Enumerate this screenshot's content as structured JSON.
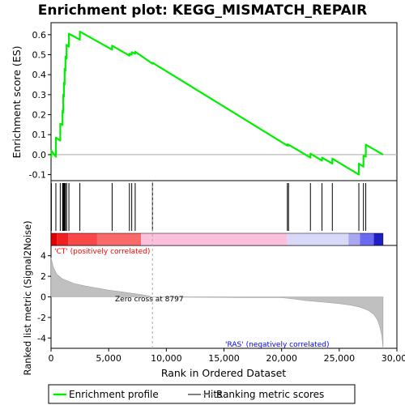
{
  "chart_data": {
    "type": "line",
    "title": "Enrichment plot: KEGG_MISMATCH_REPAIR",
    "xlabel": "Rank in Ordered Dataset",
    "ylabel_top": "Enrichment score (ES)",
    "ylabel_bottom": "Ranked list metric (Signal2Noise)",
    "xlim": [
      0,
      30000
    ],
    "x_ticks": [
      0,
      5000,
      10000,
      15000,
      20000,
      25000,
      30000
    ],
    "x_tick_labels": [
      "0",
      "5,000",
      "10,000",
      "15,000",
      "20,000",
      "25,000",
      "30,000"
    ],
    "es_ylim": [
      -0.13,
      0.66
    ],
    "es_ticks": [
      -0.1,
      0.0,
      0.1,
      0.2,
      0.3,
      0.4,
      0.5,
      0.6
    ],
    "es_tick_labels": [
      "-0.1",
      "0.0",
      "0.1",
      "0.2",
      "0.3",
      "0.4",
      "0.5",
      "0.6"
    ],
    "metric_ylim": [
      -5,
      5
    ],
    "metric_ticks": [
      -4,
      -2,
      0,
      2,
      4
    ],
    "metric_tick_labels": [
      "-4",
      "-2",
      "0",
      "2",
      "4"
    ],
    "hits": [
      30,
      420,
      800,
      1000,
      1060,
      1120,
      1180,
      1250,
      1350,
      1550,
      2500,
      5300,
      6800,
      7000,
      7300,
      8800,
      20500,
      20600,
      22500,
      23500,
      24400,
      26700,
      27100,
      27300
    ],
    "es_profile": {
      "x": [
        0,
        30,
        30,
        420,
        420,
        800,
        800,
        1000,
        1000,
        1060,
        1060,
        1120,
        1120,
        1180,
        1180,
        1250,
        1250,
        1350,
        1350,
        1550,
        1550,
        2500,
        2500,
        5300,
        5300,
        6800,
        6800,
        7000,
        7000,
        7300,
        7300,
        8800,
        8800,
        20500,
        20500,
        20600,
        20600,
        22500,
        22500,
        23500,
        23500,
        24400,
        24400,
        26700,
        26700,
        27100,
        27100,
        27300,
        27300,
        28800
      ],
      "y": [
        0.0,
        -0.01,
        0.02,
        -0.01,
        0.085,
        0.07,
        0.155,
        0.148,
        0.22,
        0.21,
        0.3,
        0.29,
        0.36,
        0.35,
        0.43,
        0.42,
        0.49,
        0.48,
        0.55,
        0.54,
        0.605,
        0.575,
        0.615,
        0.525,
        0.545,
        0.495,
        0.505,
        0.5,
        0.512,
        0.505,
        0.515,
        0.455,
        0.46,
        0.045,
        0.052,
        0.045,
        0.05,
        -0.015,
        0.005,
        -0.03,
        -0.015,
        -0.045,
        -0.02,
        -0.1,
        -0.045,
        -0.06,
        -0.005,
        -0.01,
        0.05,
        0.0
      ]
    },
    "series": [
      {
        "name": "Enrichment profile",
        "color": "#00ee00"
      }
    ],
    "legend": {
      "placement": "bottom",
      "items": [
        {
          "label": "Enrichment profile",
          "style": "green-line"
        },
        {
          "label": "Hits",
          "style": "black-line"
        },
        {
          "label": "Ranking metric scores",
          "style": "gray-line"
        }
      ]
    },
    "metric_curve": {
      "x": [
        0,
        200,
        500,
        1000,
        2000,
        3000,
        4000,
        5000,
        6000,
        7000,
        8000,
        8797,
        10000,
        12000,
        14000,
        16000,
        18000,
        20000,
        21000,
        22000,
        23000,
        24000,
        25000,
        26000,
        26800,
        27500,
        28000,
        28300,
        28500,
        28700,
        28800
      ],
      "y": [
        3.8,
        2.9,
        2.2,
        1.75,
        1.3,
        1.05,
        0.85,
        0.65,
        0.5,
        0.35,
        0.2,
        0.0,
        -0.02,
        -0.04,
        -0.05,
        -0.06,
        -0.07,
        -0.08,
        -0.2,
        -0.35,
        -0.45,
        -0.55,
        -0.65,
        -0.8,
        -1.0,
        -1.3,
        -1.7,
        -2.2,
        -2.8,
        -3.8,
        -5.0
      ]
    },
    "annotations": {
      "positive": "'CT' (positively correlated)",
      "negative": "'RAS' (negatively correlated)",
      "zero_cross": "Zero cross at 8797",
      "zero_cross_x": 8797
    },
    "colors": {
      "es_line": "#00ee00",
      "hit_line": "#000000",
      "metric_fill": "#c0c0c0",
      "positive_text": "#ff0000",
      "negative_text": "#0000ff",
      "zero_line": "#aaaaaa"
    },
    "heat_segments": [
      {
        "from": 0,
        "to": 500,
        "color": "#e00000"
      },
      {
        "from": 500,
        "to": 1500,
        "color": "#f02020"
      },
      {
        "from": 1500,
        "to": 4000,
        "color": "#f84848"
      },
      {
        "from": 4000,
        "to": 7800,
        "color": "#fb6a6a"
      },
      {
        "from": 7800,
        "to": 20500,
        "color": "#fcc0dc"
      },
      {
        "from": 20500,
        "to": 25800,
        "color": "#d8d8f8"
      },
      {
        "from": 25800,
        "to": 26800,
        "color": "#a8a8f0"
      },
      {
        "from": 26800,
        "to": 28000,
        "color": "#6a6af0"
      },
      {
        "from": 28000,
        "to": 28800,
        "color": "#2020c0"
      }
    ]
  }
}
